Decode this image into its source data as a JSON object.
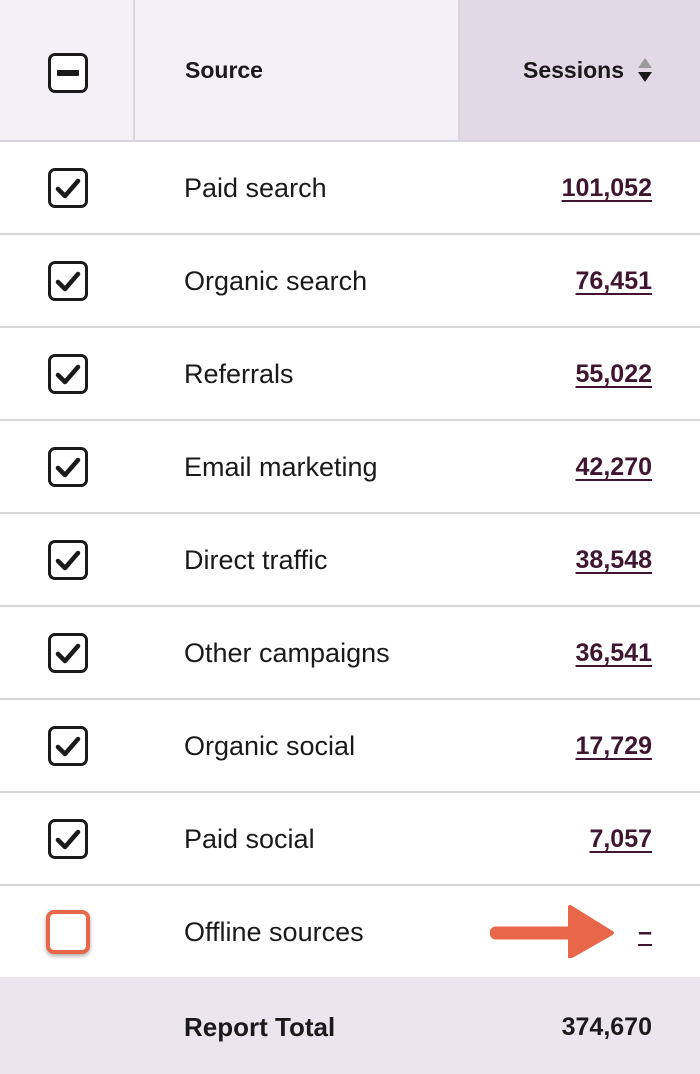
{
  "header": {
    "source_label": "Source",
    "sessions_label": "Sessions",
    "select_all_state": "indeterminate",
    "sort_icon": "sort-descending-icon"
  },
  "rows": [
    {
      "source": "Paid search",
      "sessions": "101,052",
      "checked": true
    },
    {
      "source": "Organic search",
      "sessions": "76,451",
      "checked": true
    },
    {
      "source": "Referrals",
      "sessions": "55,022",
      "checked": true
    },
    {
      "source": "Email marketing",
      "sessions": "42,270",
      "checked": true
    },
    {
      "source": "Direct traffic",
      "sessions": "38,548",
      "checked": true
    },
    {
      "source": "Other campaigns",
      "sessions": "36,541",
      "checked": true
    },
    {
      "source": "Organic social",
      "sessions": "17,729",
      "checked": true
    },
    {
      "source": "Paid social",
      "sessions": "7,057",
      "checked": true
    },
    {
      "source": "Offline sources",
      "sessions": "–",
      "checked": false
    }
  ],
  "footer": {
    "label": "Report Total",
    "total": "374,670"
  },
  "colors": {
    "header_bg": "#f4f1f6",
    "sorted_column_bg": "#e3d9e6",
    "link_value": "#3f1530",
    "highlight": "#e8674a",
    "footer_bg": "#ebe5ee"
  },
  "annotation": {
    "arrow_icon": "callout-arrow-icon"
  }
}
